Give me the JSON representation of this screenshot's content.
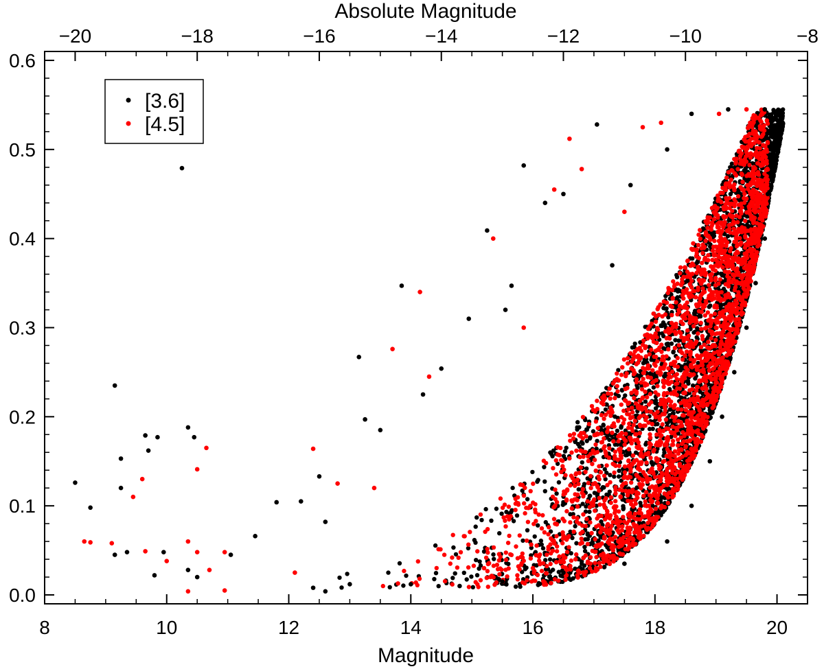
{
  "chart_data": {
    "type": "scatter",
    "title": "",
    "xlabel": "Magnitude",
    "ylabel": "",
    "x2label": "Absolute Magnitude",
    "xlim": [
      8,
      20.5
    ],
    "ylim": [
      -0.01,
      0.61
    ],
    "x2lim": [
      -20.5,
      -8
    ],
    "xticks": [
      8,
      10,
      12,
      14,
      16,
      18,
      20
    ],
    "x2ticks": [
      -20,
      -18,
      -16,
      -14,
      -12,
      -10,
      -8
    ],
    "yticks": [
      0.0,
      0.1,
      0.2,
      0.3,
      0.4,
      0.5,
      0.6
    ],
    "xtick_labels": [
      "8",
      "10",
      "12",
      "14",
      "16",
      "18",
      "20"
    ],
    "x2tick_labels": [
      "−20",
      "−18",
      "−16",
      "−14",
      "−12",
      "−10",
      "−8"
    ],
    "ytick_labels": [
      "0.0",
      "0.1",
      "0.2",
      "0.3",
      "0.4",
      "0.5",
      "0.6"
    ],
    "grid": false,
    "legend_position": "top-left",
    "series": [
      {
        "name": "[3.6]",
        "color": "#000000",
        "points": [
          [
            8.5,
            0.126
          ],
          [
            8.75,
            0.098
          ],
          [
            9.15,
            0.235
          ],
          [
            9.25,
            0.153
          ],
          [
            9.25,
            0.12
          ],
          [
            9.35,
            0.048
          ],
          [
            9.15,
            0.045
          ],
          [
            9.65,
            0.179
          ],
          [
            9.7,
            0.162
          ],
          [
            9.85,
            0.177
          ],
          [
            9.8,
            0.022
          ],
          [
            9.95,
            0.048
          ],
          [
            10.25,
            0.479
          ],
          [
            10.35,
            0.188
          ],
          [
            10.45,
            0.177
          ],
          [
            10.35,
            0.028
          ],
          [
            10.5,
            0.02
          ],
          [
            11.05,
            0.045
          ],
          [
            11.45,
            0.066
          ],
          [
            11.8,
            0.104
          ],
          [
            12.2,
            0.105
          ],
          [
            12.5,
            0.133
          ],
          [
            12.6,
            0.082
          ],
          [
            13.15,
            0.267
          ],
          [
            13.25,
            0.197
          ],
          [
            13.5,
            0.185
          ],
          [
            13.85,
            0.347
          ],
          [
            14.2,
            0.225
          ],
          [
            14.5,
            0.254
          ],
          [
            14.95,
            0.31
          ],
          [
            15.25,
            0.409
          ],
          [
            15.55,
            0.32
          ],
          [
            15.65,
            0.347
          ],
          [
            15.85,
            0.482
          ],
          [
            16.2,
            0.44
          ],
          [
            16.5,
            0.45
          ],
          [
            17.05,
            0.528
          ],
          [
            17.3,
            0.37
          ],
          [
            17.6,
            0.46
          ],
          [
            18.2,
            0.5
          ],
          [
            18.6,
            0.54
          ],
          [
            19.2,
            0.545
          ],
          [
            19.8,
            0.545
          ],
          [
            20.05,
            0.54
          ],
          [
            19.9,
            0.5
          ],
          [
            19.85,
            0.45
          ],
          [
            19.8,
            0.4
          ],
          [
            19.65,
            0.35
          ],
          [
            19.5,
            0.3
          ],
          [
            19.3,
            0.25
          ],
          [
            19.1,
            0.2
          ],
          [
            18.9,
            0.15
          ],
          [
            18.6,
            0.1
          ],
          [
            18.2,
            0.06
          ],
          [
            17.5,
            0.035
          ],
          [
            16.5,
            0.025
          ],
          [
            15.5,
            0.015
          ],
          [
            14.8,
            0.01
          ],
          [
            14.0,
            0.012
          ],
          [
            13.0,
            0.012
          ],
          [
            12.4,
            0.008
          ],
          [
            12.6,
            0.004
          ]
        ]
      },
      {
        "name": "[4.5]",
        "color": "#ff0000",
        "points": [
          [
            8.65,
            0.06
          ],
          [
            8.75,
            0.059
          ],
          [
            9.1,
            0.058
          ],
          [
            9.45,
            0.11
          ],
          [
            9.6,
            0.13
          ],
          [
            9.65,
            0.049
          ],
          [
            10.0,
            0.038
          ],
          [
            10.35,
            0.06
          ],
          [
            10.5,
            0.141
          ],
          [
            10.65,
            0.165
          ],
          [
            10.35,
            0.004
          ],
          [
            10.5,
            0.048
          ],
          [
            10.7,
            0.028
          ],
          [
            10.95,
            0.048
          ],
          [
            10.95,
            0.005
          ],
          [
            12.1,
            0.025
          ],
          [
            12.4,
            0.164
          ],
          [
            12.8,
            0.125
          ],
          [
            13.4,
            0.12
          ],
          [
            13.7,
            0.276
          ],
          [
            14.15,
            0.34
          ],
          [
            14.3,
            0.245
          ],
          [
            15.35,
            0.4
          ],
          [
            15.85,
            0.3
          ],
          [
            16.35,
            0.455
          ],
          [
            16.6,
            0.512
          ],
          [
            16.8,
            0.478
          ],
          [
            17.5,
            0.43
          ],
          [
            17.8,
            0.525
          ],
          [
            18.1,
            0.53
          ],
          [
            19.05,
            0.54
          ],
          [
            19.5,
            0.545
          ],
          [
            19.65,
            0.52
          ],
          [
            19.55,
            0.46
          ],
          [
            19.35,
            0.4
          ],
          [
            19.2,
            0.35
          ],
          [
            19.0,
            0.3
          ],
          [
            18.8,
            0.25
          ],
          [
            18.6,
            0.2
          ],
          [
            18.3,
            0.15
          ],
          [
            17.9,
            0.1
          ],
          [
            17.4,
            0.06
          ],
          [
            16.7,
            0.04
          ],
          [
            16.0,
            0.03
          ],
          [
            15.2,
            0.03
          ]
        ]
      }
    ]
  }
}
